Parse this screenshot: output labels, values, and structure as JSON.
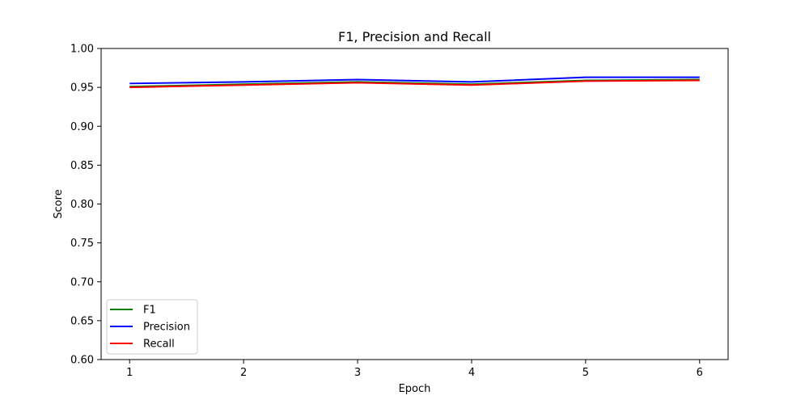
{
  "chart_data": {
    "type": "line",
    "title": "F1, Precision and Recall",
    "xlabel": "Epoch",
    "ylabel": "Score",
    "x": [
      1,
      2,
      3,
      4,
      5,
      6
    ],
    "xlim": [
      0.75,
      6.25
    ],
    "ylim": [
      0.6,
      1.0
    ],
    "xticks": [
      "1",
      "2",
      "3",
      "4",
      "5",
      "6"
    ],
    "yticks": [
      "0.60",
      "0.65",
      "0.70",
      "0.75",
      "0.80",
      "0.85",
      "0.90",
      "0.95",
      "1.00"
    ],
    "grid": false,
    "legend_position": "lower-left",
    "series": [
      {
        "name": "F1",
        "color": "#008000",
        "values": [
          0.951,
          0.954,
          0.957,
          0.954,
          0.959,
          0.96
        ]
      },
      {
        "name": "Precision",
        "color": "#0000ff",
        "values": [
          0.955,
          0.957,
          0.96,
          0.957,
          0.963,
          0.963
        ]
      },
      {
        "name": "Recall",
        "color": "#ff0000",
        "values": [
          0.95,
          0.953,
          0.956,
          0.953,
          0.958,
          0.959
        ]
      }
    ]
  }
}
